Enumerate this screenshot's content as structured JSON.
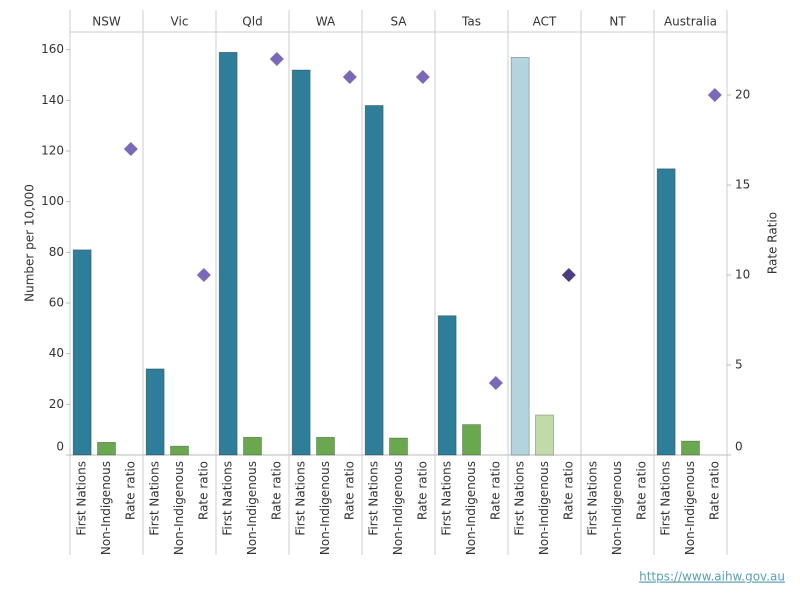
{
  "chart_data": {
    "type": "bar",
    "y_label": "Number per 10,000",
    "y2_label": "Rate Ratio",
    "categories": [
      "First Nations",
      "Non-Indigenous",
      "Rate ratio"
    ],
    "ylim": [
      0,
      167
    ],
    "yticks": [
      0,
      20,
      40,
      60,
      80,
      100,
      120,
      140,
      160
    ],
    "y2lim": [
      0,
      23.5
    ],
    "y2ticks": [
      0,
      5,
      10,
      15,
      20
    ],
    "colors": [
      "#2e7d99",
      "#6aa84f"
    ],
    "rate_color": "#7b68b8",
    "panels": [
      {
        "title": "NSW",
        "values": [
          81,
          5
        ],
        "rate_ratio": 17
      },
      {
        "title": "Vic",
        "values": [
          34,
          3.5
        ],
        "rate_ratio": 10
      },
      {
        "title": "Qld",
        "values": [
          159,
          7
        ],
        "rate_ratio": 22
      },
      {
        "title": "WA",
        "values": [
          152,
          7
        ],
        "rate_ratio": 21
      },
      {
        "title": "SA",
        "values": [
          138,
          6.7
        ],
        "rate_ratio": 21
      },
      {
        "title": "Tas",
        "values": [
          55,
          12
        ],
        "rate_ratio": 4
      },
      {
        "title": "ACT",
        "values": [
          157,
          15.8
        ],
        "rate_ratio": 10,
        "colors": [
          "#b3d3df",
          "#c0dba8"
        ],
        "rate_color": "#4a3d80"
      },
      {
        "title": "NT",
        "values": [
          null,
          null
        ],
        "rate_ratio": null
      },
      {
        "title": "Australia",
        "values": [
          113,
          5.5
        ],
        "rate_ratio": 20
      }
    ],
    "source": "https://www.aihw.gov.au"
  }
}
